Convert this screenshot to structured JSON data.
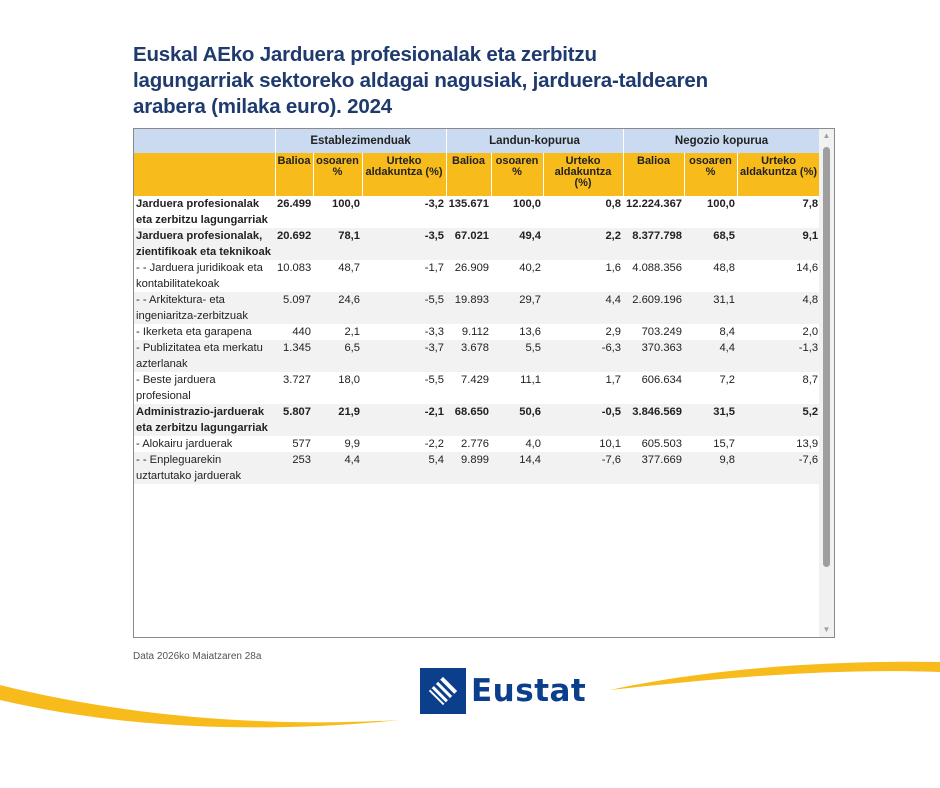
{
  "title": "Euskal AEko Jarduera profesionalak eta zerbitzu lagungarriak sektoreko aldagai nagusiak, jarduera-taldearen arabera (milaka euro). 2024",
  "table": {
    "groups": [
      "Establezimenduak",
      "Landun-kopurua",
      "Negozio kopurua"
    ],
    "subheaders": [
      "Balioa",
      "osoaren %",
      "Urteko aldakuntza (%)",
      "Balioa",
      "osoaren %",
      "Urteko aldakuntza (%)",
      "Balioa",
      "osoaren %",
      "Urteko aldakuntza (%)"
    ],
    "rows": [
      {
        "label": "Jarduera profesionalak eta zerbitzu lagungarriak",
        "bold": true,
        "cells": [
          "26.499",
          "100,0",
          "-3,2",
          "135.671",
          "100,0",
          "0,8",
          "12.224.367",
          "100,0",
          "7,8"
        ]
      },
      {
        "label": "Jarduera profesionalak, zientifikoak eta teknikoak",
        "bold": true,
        "cells": [
          "20.692",
          "78,1",
          "-3,5",
          "67.021",
          "49,4",
          "2,2",
          "8.377.798",
          "68,5",
          "9,1"
        ]
      },
      {
        "label": "- - Jarduera juridikoak eta kontabilitatekoak",
        "bold": false,
        "cells": [
          "10.083",
          "48,7",
          "-1,7",
          "26.909",
          "40,2",
          "1,6",
          "4.088.356",
          "48,8",
          "14,6"
        ]
      },
      {
        "label": "- - Arkitektura- eta ingeniaritza-zerbitzuak",
        "bold": false,
        "cells": [
          "5.097",
          "24,6",
          "-5,5",
          "19.893",
          "29,7",
          "4,4",
          "2.609.196",
          "31,1",
          "4,8"
        ]
      },
      {
        "label": "- Ikerketa eta garapena",
        "bold": false,
        "cells": [
          "440",
          "2,1",
          "-3,3",
          "9.112",
          "13,6",
          "2,9",
          "703.249",
          "8,4",
          "2,0"
        ]
      },
      {
        "label": "- Publizitatea eta merkatu azterlanak",
        "bold": false,
        "cells": [
          "1.345",
          "6,5",
          "-3,7",
          "3.678",
          "5,5",
          "-6,3",
          "370.363",
          "4,4",
          "-1,3"
        ]
      },
      {
        "label": "- Beste jarduera profesional",
        "bold": false,
        "cells": [
          "3.727",
          "18,0",
          "-5,5",
          "7.429",
          "11,1",
          "1,7",
          "606.634",
          "7,2",
          "8,7"
        ]
      },
      {
        "label": "Administrazio-jarduerak eta zerbitzu lagungarriak",
        "bold": true,
        "cells": [
          "5.807",
          "21,9",
          "-2,1",
          "68.650",
          "50,6",
          "-0,5",
          "3.846.569",
          "31,5",
          "5,2"
        ]
      },
      {
        "label": "- Alokairu jarduerak",
        "bold": false,
        "cells": [
          "577",
          "9,9",
          "-2,2",
          "2.776",
          "4,0",
          "10,1",
          "605.503",
          "15,7",
          "13,9"
        ]
      },
      {
        "label": "- - Enpleguarekin uztartutako jarduerak",
        "bold": false,
        "cells": [
          "253",
          "4,4",
          "5,4",
          "9.899",
          "14,4",
          "-7,6",
          "377.669",
          "9,8",
          "-7,6"
        ]
      }
    ]
  },
  "footnote": "Data 2026ko Maiatzaren 28a",
  "logo": {
    "text": "Eustat",
    "icon": "eustat-logo-icon"
  },
  "colors": {
    "title": "#1f3a6e",
    "group_header_bg": "#c9daf1",
    "sub_header_bg": "#f7bb1c",
    "row_alt_bg": "#f2f2f2",
    "brand_blue": "#0b3f8c",
    "wave_yellow": "#f7bb1c"
  }
}
